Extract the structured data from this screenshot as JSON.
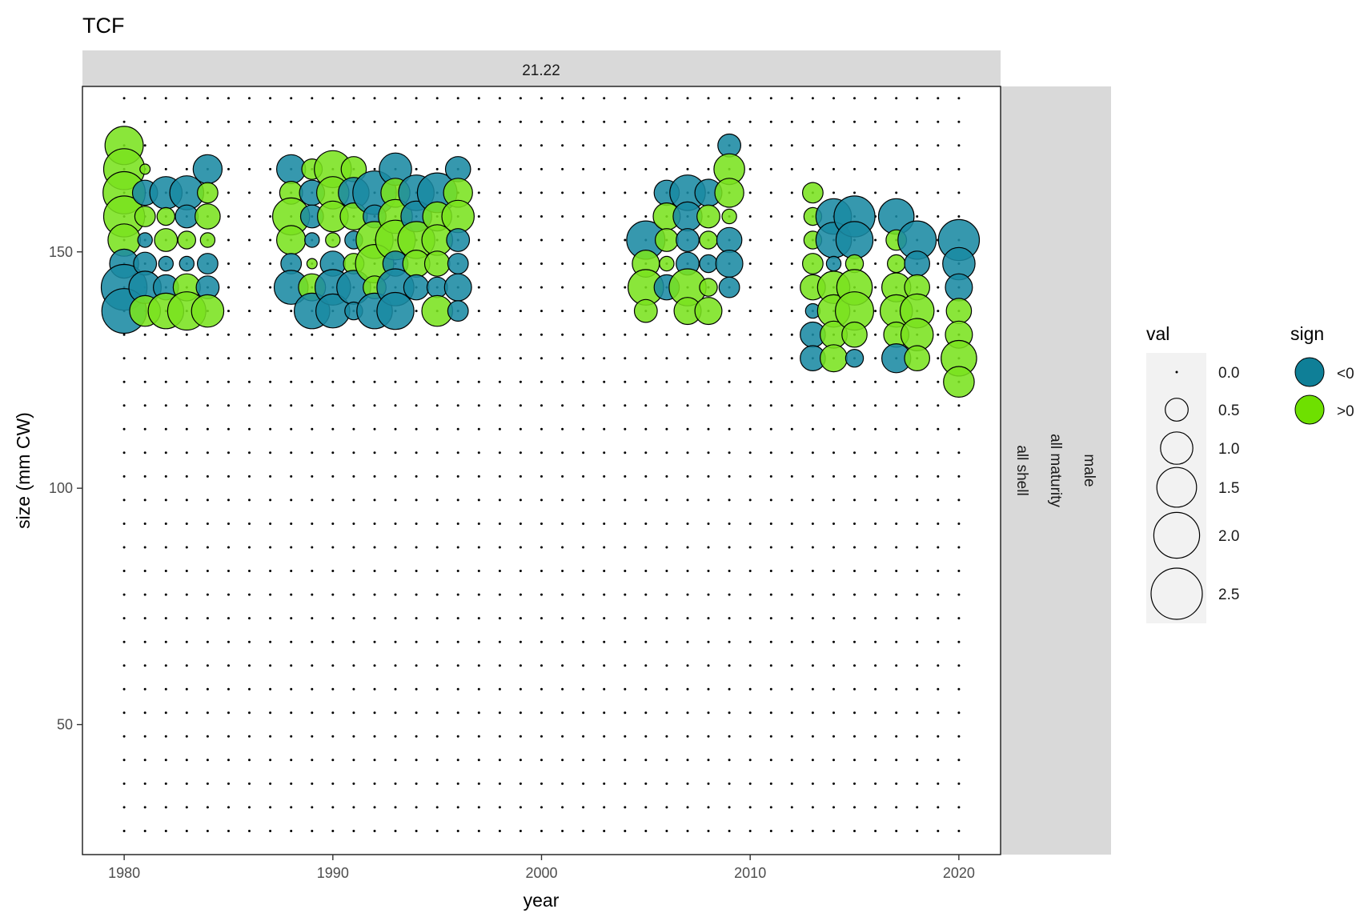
{
  "chart_data": {
    "type": "scatter",
    "title": "TCF",
    "facet_top": "21.22",
    "facet_right": [
      "male",
      "all maturity",
      "all shell"
    ],
    "xlabel": "year",
    "ylabel": "size (mm CW)",
    "xlim": [
      1978,
      2022
    ],
    "ylim": [
      22.5,
      185
    ],
    "x_ticks": [
      1980,
      1990,
      2000,
      2010,
      2020
    ],
    "y_ticks": [
      50,
      100,
      150
    ],
    "grid": false,
    "background_points": {
      "x_from": 1980,
      "x_to": 2020,
      "x_step": 1,
      "y_from": 27.5,
      "y_to": 182.5,
      "y_step": 5
    },
    "colors": {
      "neg": "#1a8aa3",
      "pos": "#7ae31f",
      "outline": "#000000"
    },
    "legend_size": {
      "title": "val",
      "values": [
        0.0,
        0.5,
        1.0,
        1.5,
        2.0,
        2.5
      ],
      "labels": [
        "0.0",
        "0.5",
        "1.0",
        "1.5",
        "2.0",
        "2.5"
      ]
    },
    "legend_color": {
      "title": "sign",
      "labels": [
        "<0",
        ">0"
      ]
    },
    "bubbles": [
      {
        "x": 1980,
        "y": 172.5,
        "val": 1.4,
        "sign": "pos"
      },
      {
        "x": 1980,
        "y": 167.5,
        "val": 1.6,
        "sign": "pos"
      },
      {
        "x": 1980,
        "y": 162.5,
        "val": 1.7,
        "sign": "pos"
      },
      {
        "x": 1980,
        "y": 157.5,
        "val": 1.6,
        "sign": "pos"
      },
      {
        "x": 1980,
        "y": 152.5,
        "val": 1.0,
        "sign": "pos"
      },
      {
        "x": 1980,
        "y": 147.5,
        "val": 0.8,
        "sign": "neg"
      },
      {
        "x": 1980,
        "y": 142.5,
        "val": 2.0,
        "sign": "neg"
      },
      {
        "x": 1980,
        "y": 137.5,
        "val": 1.9,
        "sign": "neg"
      },
      {
        "x": 1981,
        "y": 167.5,
        "val": 0.1,
        "sign": "pos"
      },
      {
        "x": 1981,
        "y": 162.5,
        "val": 0.6,
        "sign": "neg"
      },
      {
        "x": 1981,
        "y": 157.5,
        "val": 0.4,
        "sign": "pos"
      },
      {
        "x": 1981,
        "y": 152.5,
        "val": 0.2,
        "sign": "neg"
      },
      {
        "x": 1981,
        "y": 147.5,
        "val": 0.5,
        "sign": "neg"
      },
      {
        "x": 1981,
        "y": 142.5,
        "val": 1.0,
        "sign": "neg"
      },
      {
        "x": 1981,
        "y": 137.5,
        "val": 0.9,
        "sign": "pos"
      },
      {
        "x": 1982,
        "y": 162.5,
        "val": 1.0,
        "sign": "neg"
      },
      {
        "x": 1982,
        "y": 157.5,
        "val": 0.3,
        "sign": "pos"
      },
      {
        "x": 1982,
        "y": 152.5,
        "val": 0.5,
        "sign": "pos"
      },
      {
        "x": 1982,
        "y": 147.5,
        "val": 0.2,
        "sign": "neg"
      },
      {
        "x": 1982,
        "y": 142.5,
        "val": 0.6,
        "sign": "neg"
      },
      {
        "x": 1982,
        "y": 137.5,
        "val": 1.2,
        "sign": "pos"
      },
      {
        "x": 1983,
        "y": 162.5,
        "val": 1.1,
        "sign": "neg"
      },
      {
        "x": 1983,
        "y": 157.5,
        "val": 0.5,
        "sign": "neg"
      },
      {
        "x": 1983,
        "y": 152.5,
        "val": 0.3,
        "sign": "pos"
      },
      {
        "x": 1983,
        "y": 147.5,
        "val": 0.2,
        "sign": "neg"
      },
      {
        "x": 1983,
        "y": 142.5,
        "val": 0.7,
        "sign": "pos"
      },
      {
        "x": 1983,
        "y": 137.5,
        "val": 1.4,
        "sign": "pos"
      },
      {
        "x": 1984,
        "y": 167.5,
        "val": 0.8,
        "sign": "neg"
      },
      {
        "x": 1984,
        "y": 162.5,
        "val": 0.4,
        "sign": "pos"
      },
      {
        "x": 1984,
        "y": 157.5,
        "val": 0.6,
        "sign": "pos"
      },
      {
        "x": 1984,
        "y": 152.5,
        "val": 0.2,
        "sign": "pos"
      },
      {
        "x": 1984,
        "y": 147.5,
        "val": 0.4,
        "sign": "neg"
      },
      {
        "x": 1984,
        "y": 142.5,
        "val": 0.5,
        "sign": "neg"
      },
      {
        "x": 1984,
        "y": 137.5,
        "val": 1.0,
        "sign": "pos"
      },
      {
        "x": 1988,
        "y": 167.5,
        "val": 0.8,
        "sign": "neg"
      },
      {
        "x": 1988,
        "y": 162.5,
        "val": 0.5,
        "sign": "pos"
      },
      {
        "x": 1988,
        "y": 157.5,
        "val": 1.3,
        "sign": "pos"
      },
      {
        "x": 1988,
        "y": 152.5,
        "val": 0.8,
        "sign": "pos"
      },
      {
        "x": 1988,
        "y": 147.5,
        "val": 0.4,
        "sign": "neg"
      },
      {
        "x": 1988,
        "y": 142.5,
        "val": 1.1,
        "sign": "neg"
      },
      {
        "x": 1989,
        "y": 167.5,
        "val": 0.4,
        "sign": "pos"
      },
      {
        "x": 1989,
        "y": 162.5,
        "val": 0.6,
        "sign": "neg"
      },
      {
        "x": 1989,
        "y": 157.5,
        "val": 0.5,
        "sign": "neg"
      },
      {
        "x": 1989,
        "y": 152.5,
        "val": 0.2,
        "sign": "neg"
      },
      {
        "x": 1989,
        "y": 147.5,
        "val": 0.1,
        "sign": "pos"
      },
      {
        "x": 1989,
        "y": 142.5,
        "val": 0.7,
        "sign": "pos"
      },
      {
        "x": 1989,
        "y": 137.5,
        "val": 1.2,
        "sign": "neg"
      },
      {
        "x": 1990,
        "y": 167.5,
        "val": 1.3,
        "sign": "pos"
      },
      {
        "x": 1990,
        "y": 162.5,
        "val": 1.0,
        "sign": "pos"
      },
      {
        "x": 1990,
        "y": 157.5,
        "val": 0.9,
        "sign": "pos"
      },
      {
        "x": 1990,
        "y": 152.5,
        "val": 0.2,
        "sign": "pos"
      },
      {
        "x": 1990,
        "y": 147.5,
        "val": 0.6,
        "sign": "neg"
      },
      {
        "x": 1990,
        "y": 142.5,
        "val": 1.2,
        "sign": "neg"
      },
      {
        "x": 1990,
        "y": 137.5,
        "val": 1.1,
        "sign": "neg"
      },
      {
        "x": 1991,
        "y": 167.5,
        "val": 0.6,
        "sign": "pos"
      },
      {
        "x": 1991,
        "y": 162.5,
        "val": 0.9,
        "sign": "neg"
      },
      {
        "x": 1991,
        "y": 157.5,
        "val": 0.7,
        "sign": "pos"
      },
      {
        "x": 1991,
        "y": 152.5,
        "val": 0.3,
        "sign": "neg"
      },
      {
        "x": 1991,
        "y": 147.5,
        "val": 0.4,
        "sign": "pos"
      },
      {
        "x": 1991,
        "y": 142.5,
        "val": 1.1,
        "sign": "neg"
      },
      {
        "x": 1991,
        "y": 137.5,
        "val": 0.3,
        "sign": "neg"
      },
      {
        "x": 1992,
        "y": 162.5,
        "val": 1.8,
        "sign": "neg"
      },
      {
        "x": 1992,
        "y": 157.5,
        "val": 0.5,
        "sign": "neg"
      },
      {
        "x": 1992,
        "y": 152.5,
        "val": 1.3,
        "sign": "pos"
      },
      {
        "x": 1992,
        "y": 147.5,
        "val": 1.4,
        "sign": "pos"
      },
      {
        "x": 1992,
        "y": 142.5,
        "val": 0.5,
        "sign": "pos"
      },
      {
        "x": 1992,
        "y": 137.5,
        "val": 1.2,
        "sign": "neg"
      },
      {
        "x": 1993,
        "y": 167.5,
        "val": 1.0,
        "sign": "neg"
      },
      {
        "x": 1993,
        "y": 162.5,
        "val": 0.8,
        "sign": "pos"
      },
      {
        "x": 1993,
        "y": 157.5,
        "val": 1.1,
        "sign": "pos"
      },
      {
        "x": 1993,
        "y": 152.5,
        "val": 1.5,
        "sign": "pos"
      },
      {
        "x": 1993,
        "y": 147.5,
        "val": 0.6,
        "sign": "neg"
      },
      {
        "x": 1993,
        "y": 142.5,
        "val": 1.3,
        "sign": "neg"
      },
      {
        "x": 1993,
        "y": 137.5,
        "val": 1.3,
        "sign": "neg"
      },
      {
        "x": 1994,
        "y": 162.5,
        "val": 1.2,
        "sign": "neg"
      },
      {
        "x": 1994,
        "y": 157.5,
        "val": 0.9,
        "sign": "neg"
      },
      {
        "x": 1994,
        "y": 152.5,
        "val": 1.3,
        "sign": "pos"
      },
      {
        "x": 1994,
        "y": 147.5,
        "val": 0.7,
        "sign": "pos"
      },
      {
        "x": 1994,
        "y": 142.5,
        "val": 0.6,
        "sign": "neg"
      },
      {
        "x": 1995,
        "y": 162.5,
        "val": 1.5,
        "sign": "neg"
      },
      {
        "x": 1995,
        "y": 157.5,
        "val": 0.8,
        "sign": "pos"
      },
      {
        "x": 1995,
        "y": 152.5,
        "val": 0.9,
        "sign": "pos"
      },
      {
        "x": 1995,
        "y": 147.5,
        "val": 0.6,
        "sign": "pos"
      },
      {
        "x": 1995,
        "y": 142.5,
        "val": 0.4,
        "sign": "neg"
      },
      {
        "x": 1995,
        "y": 137.5,
        "val": 0.9,
        "sign": "pos"
      },
      {
        "x": 1996,
        "y": 167.5,
        "val": 0.6,
        "sign": "neg"
      },
      {
        "x": 1996,
        "y": 162.5,
        "val": 0.8,
        "sign": "pos"
      },
      {
        "x": 1996,
        "y": 157.5,
        "val": 1.0,
        "sign": "pos"
      },
      {
        "x": 1996,
        "y": 152.5,
        "val": 0.5,
        "sign": "neg"
      },
      {
        "x": 1996,
        "y": 147.5,
        "val": 0.4,
        "sign": "neg"
      },
      {
        "x": 1996,
        "y": 142.5,
        "val": 0.7,
        "sign": "neg"
      },
      {
        "x": 1996,
        "y": 137.5,
        "val": 0.4,
        "sign": "neg"
      },
      {
        "x": 2005,
        "y": 152.5,
        "val": 1.4,
        "sign": "neg"
      },
      {
        "x": 2005,
        "y": 147.5,
        "val": 0.7,
        "sign": "pos"
      },
      {
        "x": 2005,
        "y": 142.5,
        "val": 1.2,
        "sign": "pos"
      },
      {
        "x": 2005,
        "y": 137.5,
        "val": 0.5,
        "sign": "pos"
      },
      {
        "x": 2006,
        "y": 162.5,
        "val": 0.6,
        "sign": "neg"
      },
      {
        "x": 2006,
        "y": 157.5,
        "val": 0.7,
        "sign": "pos"
      },
      {
        "x": 2006,
        "y": 152.5,
        "val": 0.5,
        "sign": "pos"
      },
      {
        "x": 2006,
        "y": 147.5,
        "val": 0.2,
        "sign": "pos"
      },
      {
        "x": 2006,
        "y": 142.5,
        "val": 0.6,
        "sign": "neg"
      },
      {
        "x": 2007,
        "y": 162.5,
        "val": 1.2,
        "sign": "neg"
      },
      {
        "x": 2007,
        "y": 157.5,
        "val": 0.8,
        "sign": "neg"
      },
      {
        "x": 2007,
        "y": 152.5,
        "val": 0.5,
        "sign": "neg"
      },
      {
        "x": 2007,
        "y": 147.5,
        "val": 0.5,
        "sign": "neg"
      },
      {
        "x": 2007,
        "y": 142.5,
        "val": 1.3,
        "sign": "pos"
      },
      {
        "x": 2007,
        "y": 137.5,
        "val": 0.7,
        "sign": "pos"
      },
      {
        "x": 2008,
        "y": 162.5,
        "val": 0.7,
        "sign": "neg"
      },
      {
        "x": 2008,
        "y": 157.5,
        "val": 0.5,
        "sign": "pos"
      },
      {
        "x": 2008,
        "y": 152.5,
        "val": 0.3,
        "sign": "pos"
      },
      {
        "x": 2008,
        "y": 147.5,
        "val": 0.3,
        "sign": "neg"
      },
      {
        "x": 2008,
        "y": 142.5,
        "val": 0.3,
        "sign": "pos"
      },
      {
        "x": 2008,
        "y": 137.5,
        "val": 0.7,
        "sign": "pos"
      },
      {
        "x": 2009,
        "y": 172.5,
        "val": 0.5,
        "sign": "neg"
      },
      {
        "x": 2009,
        "y": 167.5,
        "val": 0.9,
        "sign": "pos"
      },
      {
        "x": 2009,
        "y": 162.5,
        "val": 0.8,
        "sign": "pos"
      },
      {
        "x": 2009,
        "y": 157.5,
        "val": 0.2,
        "sign": "pos"
      },
      {
        "x": 2009,
        "y": 152.5,
        "val": 0.6,
        "sign": "neg"
      },
      {
        "x": 2009,
        "y": 147.5,
        "val": 0.7,
        "sign": "neg"
      },
      {
        "x": 2009,
        "y": 142.5,
        "val": 0.4,
        "sign": "neg"
      },
      {
        "x": 2013,
        "y": 162.5,
        "val": 0.4,
        "sign": "pos"
      },
      {
        "x": 2013,
        "y": 157.5,
        "val": 0.3,
        "sign": "pos"
      },
      {
        "x": 2013,
        "y": 152.5,
        "val": 0.3,
        "sign": "pos"
      },
      {
        "x": 2013,
        "y": 147.5,
        "val": 0.4,
        "sign": "pos"
      },
      {
        "x": 2013,
        "y": 142.5,
        "val": 0.6,
        "sign": "pos"
      },
      {
        "x": 2013,
        "y": 137.5,
        "val": 0.2,
        "sign": "neg"
      },
      {
        "x": 2013,
        "y": 132.5,
        "val": 0.6,
        "sign": "neg"
      },
      {
        "x": 2013,
        "y": 127.5,
        "val": 0.6,
        "sign": "neg"
      },
      {
        "x": 2014,
        "y": 157.5,
        "val": 1.2,
        "sign": "neg"
      },
      {
        "x": 2014,
        "y": 152.5,
        "val": 1.2,
        "sign": "neg"
      },
      {
        "x": 2014,
        "y": 147.5,
        "val": 0.2,
        "sign": "neg"
      },
      {
        "x": 2014,
        "y": 142.5,
        "val": 1.0,
        "sign": "pos"
      },
      {
        "x": 2014,
        "y": 137.5,
        "val": 1.0,
        "sign": "pos"
      },
      {
        "x": 2014,
        "y": 132.5,
        "val": 0.7,
        "sign": "pos"
      },
      {
        "x": 2014,
        "y": 127.5,
        "val": 0.7,
        "sign": "pos"
      },
      {
        "x": 2015,
        "y": 157.5,
        "val": 1.6,
        "sign": "neg"
      },
      {
        "x": 2015,
        "y": 152.5,
        "val": 1.3,
        "sign": "neg"
      },
      {
        "x": 2015,
        "y": 147.5,
        "val": 0.3,
        "sign": "pos"
      },
      {
        "x": 2015,
        "y": 142.5,
        "val": 1.2,
        "sign": "pos"
      },
      {
        "x": 2015,
        "y": 137.5,
        "val": 1.4,
        "sign": "pos"
      },
      {
        "x": 2015,
        "y": 132.5,
        "val": 0.6,
        "sign": "pos"
      },
      {
        "x": 2015,
        "y": 127.5,
        "val": 0.3,
        "sign": "neg"
      },
      {
        "x": 2017,
        "y": 157.5,
        "val": 1.2,
        "sign": "neg"
      },
      {
        "x": 2017,
        "y": 152.5,
        "val": 0.4,
        "sign": "pos"
      },
      {
        "x": 2017,
        "y": 147.5,
        "val": 0.3,
        "sign": "pos"
      },
      {
        "x": 2017,
        "y": 142.5,
        "val": 0.8,
        "sign": "pos"
      },
      {
        "x": 2017,
        "y": 137.5,
        "val": 1.0,
        "sign": "pos"
      },
      {
        "x": 2017,
        "y": 132.5,
        "val": 0.6,
        "sign": "pos"
      },
      {
        "x": 2017,
        "y": 127.5,
        "val": 0.8,
        "sign": "neg"
      },
      {
        "x": 2018,
        "y": 152.5,
        "val": 1.4,
        "sign": "neg"
      },
      {
        "x": 2018,
        "y": 147.5,
        "val": 0.6,
        "sign": "neg"
      },
      {
        "x": 2018,
        "y": 142.5,
        "val": 0.6,
        "sign": "pos"
      },
      {
        "x": 2018,
        "y": 137.5,
        "val": 1.1,
        "sign": "pos"
      },
      {
        "x": 2018,
        "y": 132.5,
        "val": 1.0,
        "sign": "pos"
      },
      {
        "x": 2018,
        "y": 127.5,
        "val": 0.6,
        "sign": "pos"
      },
      {
        "x": 2020,
        "y": 152.5,
        "val": 1.6,
        "sign": "neg"
      },
      {
        "x": 2020,
        "y": 147.5,
        "val": 1.0,
        "sign": "neg"
      },
      {
        "x": 2020,
        "y": 142.5,
        "val": 0.7,
        "sign": "neg"
      },
      {
        "x": 2020,
        "y": 137.5,
        "val": 0.6,
        "sign": "pos"
      },
      {
        "x": 2020,
        "y": 132.5,
        "val": 0.7,
        "sign": "pos"
      },
      {
        "x": 2020,
        "y": 127.5,
        "val": 1.2,
        "sign": "pos"
      },
      {
        "x": 2020,
        "y": 122.5,
        "val": 0.9,
        "sign": "pos"
      }
    ]
  }
}
